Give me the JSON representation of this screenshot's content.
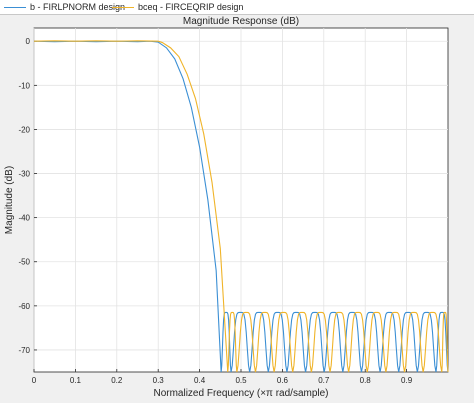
{
  "legend": {
    "items": [
      {
        "label": "b - FIRLPNORM design",
        "color": "#3b8fd4"
      },
      {
        "label": "bceq - FIRCEQRIP design",
        "color": "#f0b429"
      }
    ]
  },
  "chart_data": {
    "type": "line",
    "title": "Magnitude Response (dB)",
    "xlabel": "Normalized Frequency (×π rad/sample)",
    "ylabel": "Magnitude (dB)",
    "xlim": [
      0,
      1
    ],
    "ylim": [
      -75,
      3
    ],
    "xticks": [
      0,
      0.1,
      0.2,
      0.3,
      0.4,
      0.5,
      0.6,
      0.7,
      0.8,
      0.9
    ],
    "xtick_labels": [
      "0",
      "0.1",
      "0.2",
      "0.3",
      "0.4",
      "0.5",
      "0.6",
      "0.7",
      "0.8",
      "0.9"
    ],
    "yticks": [
      0,
      -10,
      -20,
      -30,
      -40,
      -50,
      -60,
      -70
    ],
    "ytick_labels": [
      "0",
      "-10",
      "-20",
      "-30",
      "-40",
      "-50",
      "-60",
      "-70"
    ],
    "grid": true,
    "legend_placement": "top",
    "series": [
      {
        "name": "b - FIRLPNORM design",
        "color": "#3b8fd4",
        "passband": {
          "x": [
            0,
            0.05,
            0.1,
            0.15,
            0.2,
            0.25,
            0.28,
            0.3
          ],
          "y": [
            0,
            -0.1,
            0,
            -0.1,
            0,
            -0.1,
            0,
            -0.2
          ]
        },
        "transition": {
          "x": [
            0.3,
            0.32,
            0.34,
            0.36,
            0.38,
            0.4,
            0.42,
            0.44,
            0.452
          ],
          "y": [
            -0.2,
            -1.5,
            -4,
            -8.5,
            -15,
            -24,
            -36,
            -52,
            -75
          ]
        },
        "stopband_peak_db": -61.5,
        "stopband_nulls": [
          0.452,
          0.476,
          0.521,
          0.566,
          0.611,
          0.656,
          0.701,
          0.746,
          0.791,
          0.836,
          0.881,
          0.926,
          0.971,
          1.0
        ]
      },
      {
        "name": "bceq - FIRCEQRIP design",
        "color": "#f0b429",
        "passband": {
          "x": [
            0,
            0.05,
            0.1,
            0.15,
            0.2,
            0.25,
            0.3,
            0.31
          ],
          "y": [
            0,
            0.1,
            0,
            0.1,
            0,
            0.1,
            0,
            -0.3
          ]
        },
        "transition": {
          "x": [
            0.31,
            0.33,
            0.35,
            0.37,
            0.39,
            0.41,
            0.43,
            0.45,
            0.468
          ],
          "y": [
            -0.3,
            -1.5,
            -3.5,
            -7.5,
            -13,
            -21,
            -32,
            -47,
            -75
          ]
        },
        "stopband_peak_db": -61.5,
        "stopband_nulls": [
          0.468,
          0.49,
          0.535,
          0.58,
          0.625,
          0.67,
          0.715,
          0.76,
          0.805,
          0.85,
          0.895,
          0.94,
          0.985,
          1.0
        ]
      }
    ]
  }
}
